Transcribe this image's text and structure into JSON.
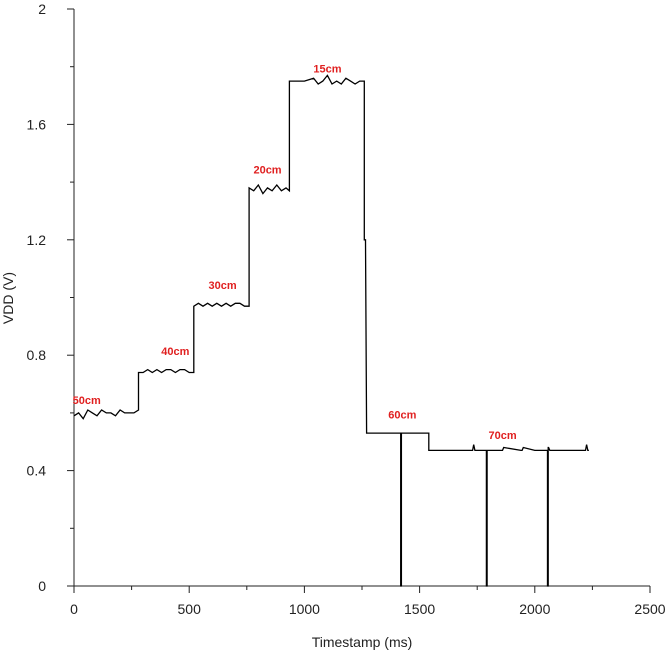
{
  "chart_data": {
    "type": "line",
    "title": "",
    "xlabel": "Timestamp (ms)",
    "ylabel": "VDD (V)",
    "xlim": [
      0,
      2500
    ],
    "ylim": [
      0,
      2
    ],
    "x_ticks": [
      "0",
      "500",
      "1000",
      "1500",
      "2000",
      "2500"
    ],
    "y_ticks": [
      "0",
      "0.4",
      "0.8",
      "1.2",
      "1.6",
      "2"
    ],
    "grid": false,
    "line_color": "#000000",
    "annotation_color": "#e02020",
    "annotations": [
      {
        "text": "50cm",
        "x": 55,
        "y": 0.63
      },
      {
        "text": "40cm",
        "x": 440,
        "y": 0.8
      },
      {
        "text": "30cm",
        "x": 645,
        "y": 1.03
      },
      {
        "text": "20cm",
        "x": 840,
        "y": 1.43
      },
      {
        "text": "15cm",
        "x": 1100,
        "y": 1.78
      },
      {
        "text": "60cm",
        "x": 1425,
        "y": 0.58
      },
      {
        "text": "70cm",
        "x": 1860,
        "y": 0.51
      }
    ],
    "series": [
      {
        "x": [
          0,
          20,
          40,
          60,
          80,
          100,
          120,
          140,
          160,
          180,
          200,
          220,
          240,
          260,
          280,
          280,
          300,
          320,
          340,
          360,
          380,
          400,
          420,
          440,
          460,
          480,
          500,
          520,
          520,
          540,
          560,
          580,
          600,
          620,
          640,
          660,
          680,
          700,
          720,
          740,
          760,
          760,
          780,
          800,
          820,
          840,
          860,
          880,
          900,
          920,
          935,
          935,
          960,
          1000,
          1040,
          1060,
          1080,
          1100,
          1120,
          1140,
          1160,
          1180,
          1200,
          1220,
          1240,
          1260,
          1260,
          1265,
          1270,
          1270,
          1300,
          1340,
          1380,
          1410,
          1418,
          1418,
          1421,
          1421,
          1450,
          1500,
          1540,
          1540,
          1600,
          1700,
          1730,
          1735,
          1740,
          1790,
          1790,
          1793,
          1793,
          1850,
          1860,
          1865,
          1940,
          1945,
          1950,
          2000,
          2055,
          2055,
          2058,
          2058,
          2060,
          2065,
          2150,
          2220,
          2225,
          2230,
          2235
        ],
        "y": [
          0.59,
          0.6,
          0.58,
          0.61,
          0.6,
          0.59,
          0.61,
          0.6,
          0.6,
          0.59,
          0.61,
          0.6,
          0.6,
          0.6,
          0.61,
          0.74,
          0.74,
          0.75,
          0.74,
          0.75,
          0.74,
          0.75,
          0.75,
          0.74,
          0.75,
          0.75,
          0.74,
          0.74,
          0.97,
          0.98,
          0.97,
          0.98,
          0.97,
          0.98,
          0.97,
          0.98,
          0.97,
          0.98,
          0.98,
          0.97,
          0.97,
          1.38,
          1.37,
          1.39,
          1.36,
          1.38,
          1.37,
          1.39,
          1.37,
          1.38,
          1.37,
          1.75,
          1.75,
          1.75,
          1.76,
          1.74,
          1.75,
          1.77,
          1.74,
          1.75,
          1.74,
          1.76,
          1.75,
          1.74,
          1.75,
          1.75,
          1.2,
          1.2,
          0.53,
          0.53,
          0.53,
          0.53,
          0.53,
          0.53,
          0.53,
          0.0,
          0.0,
          0.53,
          0.53,
          0.53,
          0.53,
          0.47,
          0.47,
          0.47,
          0.47,
          0.49,
          0.47,
          0.47,
          0.0,
          0.0,
          0.47,
          0.47,
          0.47,
          0.48,
          0.47,
          0.47,
          0.48,
          0.47,
          0.47,
          0.0,
          0.0,
          0.48,
          0.48,
          0.47,
          0.47,
          0.47,
          0.49,
          0.47,
          0.47
        ]
      }
    ]
  }
}
